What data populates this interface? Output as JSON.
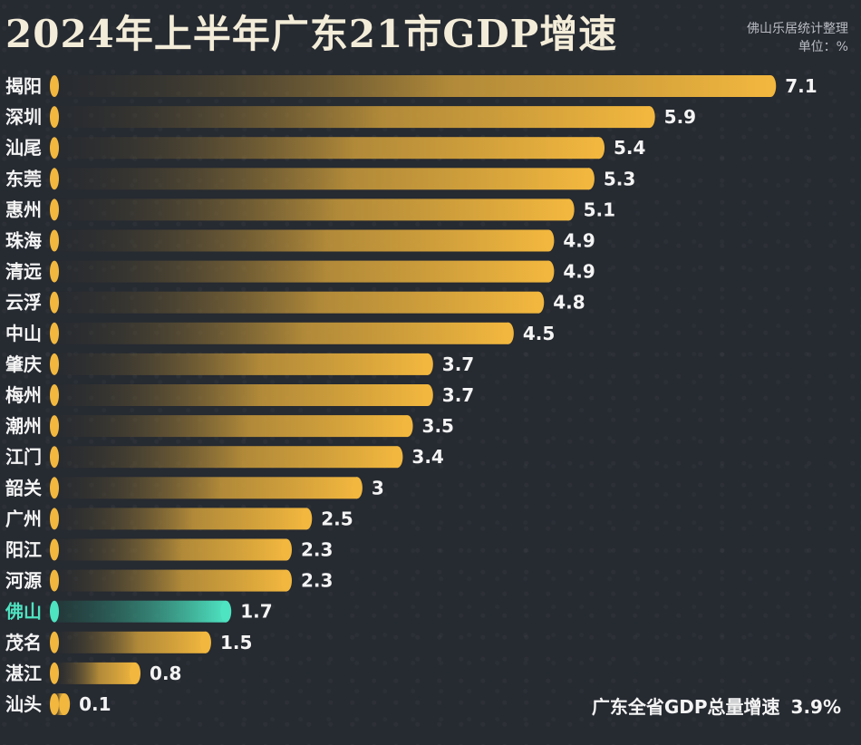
{
  "header": {
    "title": "2024年上半年广东21市GDP增速",
    "source": "佛山乐居统计整理",
    "unit": "单位：%"
  },
  "footer": {
    "label": "广东全省GDP总量增速",
    "value": "3.9%"
  },
  "colors": {
    "bar": "#f2b73e",
    "highlight": "#4ee3c1",
    "label_text": "#f4f4f4",
    "highlight_text": "#4ee3c1"
  },
  "chart_data": {
    "type": "bar",
    "orientation": "horizontal",
    "title": "2024年上半年广东21市GDP增速",
    "unit": "%",
    "categories": [
      "揭阳",
      "深圳",
      "汕尾",
      "东莞",
      "惠州",
      "珠海",
      "清远",
      "云浮",
      "中山",
      "肇庆",
      "梅州",
      "潮州",
      "江门",
      "韶关",
      "广州",
      "阳江",
      "河源",
      "佛山",
      "茂名",
      "湛江",
      "汕头"
    ],
    "values": [
      7.1,
      5.9,
      5.4,
      5.3,
      5.1,
      4.9,
      4.9,
      4.8,
      4.5,
      3.7,
      3.7,
      3.5,
      3.4,
      3,
      2.5,
      2.3,
      2.3,
      1.7,
      1.5,
      0.8,
      0.1
    ],
    "value_labels": [
      "7.1",
      "5.9",
      "5.4",
      "5.3",
      "5.1",
      "4.9",
      "4.9",
      "4.8",
      "4.5",
      "3.7",
      "3.7",
      "3.5",
      "3.4",
      "3",
      "2.5",
      "2.3",
      "2.3",
      "1.7",
      "1.5",
      "0.8",
      "0.1"
    ],
    "highlight": "佛山",
    "grid": false,
    "legend": "none"
  }
}
